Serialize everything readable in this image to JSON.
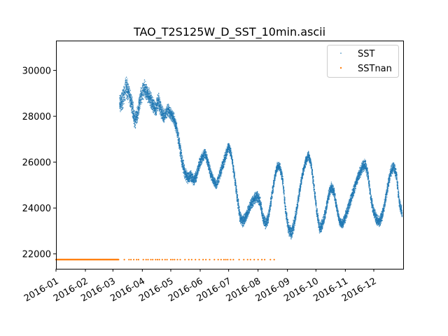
{
  "chart_data": {
    "type": "scatter",
    "title": "TAO_T2S125W_D_SST_10min.ascii",
    "xlabel": "",
    "ylabel": "",
    "x_range": [
      "2016-01-01",
      "2016-12-31"
    ],
    "ylim": [
      21350,
      31300
    ],
    "x_ticks": [
      "2016-01",
      "2016-02",
      "2016-03",
      "2016-04",
      "2016-05",
      "2016-06",
      "2016-07",
      "2016-08",
      "2016-09",
      "2016-10",
      "2016-11",
      "2016-12"
    ],
    "y_ticks": [
      22000,
      24000,
      26000,
      28000,
      30000
    ],
    "grid": false,
    "legend_position": "top-right",
    "series": [
      {
        "name": "SST",
        "color": "#1f77b4",
        "x": [
          "2016-03-08",
          "2016-03-11",
          "2016-03-15",
          "2016-03-18",
          "2016-03-21",
          "2016-03-24",
          "2016-03-27",
          "2016-03-30",
          "2016-04-03",
          "2016-04-06",
          "2016-04-09",
          "2016-04-12",
          "2016-04-15",
          "2016-04-18",
          "2016-04-21",
          "2016-04-24",
          "2016-04-28",
          "2016-05-01",
          "2016-05-04",
          "2016-05-07",
          "2016-05-10",
          "2016-05-13",
          "2016-05-16",
          "2016-05-19",
          "2016-05-22",
          "2016-05-25",
          "2016-05-28",
          "2016-05-31",
          "2016-06-03",
          "2016-06-06",
          "2016-06-09",
          "2016-06-12",
          "2016-06-15",
          "2016-06-18",
          "2016-06-22",
          "2016-06-25",
          "2016-06-28",
          "2016-07-01",
          "2016-07-04",
          "2016-07-07",
          "2016-07-10",
          "2016-07-13",
          "2016-07-16",
          "2016-07-19",
          "2016-07-22",
          "2016-07-25",
          "2016-07-28",
          "2016-07-31",
          "2016-08-03",
          "2016-08-06",
          "2016-08-09",
          "2016-08-12",
          "2016-08-15",
          "2016-08-18",
          "2016-08-21",
          "2016-08-24",
          "2016-08-27",
          "2016-08-30",
          "2016-09-02",
          "2016-09-05",
          "2016-09-08",
          "2016-09-11",
          "2016-09-14",
          "2016-09-17",
          "2016-09-20",
          "2016-09-23",
          "2016-09-26",
          "2016-09-29",
          "2016-10-02",
          "2016-10-05",
          "2016-10-08",
          "2016-10-11",
          "2016-10-14",
          "2016-10-17",
          "2016-10-20",
          "2016-10-23",
          "2016-10-26",
          "2016-10-29",
          "2016-11-01",
          "2016-11-04",
          "2016-11-07",
          "2016-11-10",
          "2016-11-13",
          "2016-11-16",
          "2016-11-19",
          "2016-11-22",
          "2016-11-25",
          "2016-11-28",
          "2016-12-01",
          "2016-12-04",
          "2016-12-07",
          "2016-12-10",
          "2016-12-13",
          "2016-12-16",
          "2016-12-19",
          "2016-12-22",
          "2016-12-25",
          "2016-12-28",
          "2016-12-31"
        ],
        "y": [
          28500,
          28700,
          29300,
          29000,
          28500,
          27800,
          28100,
          28800,
          29200,
          29000,
          28800,
          28500,
          28300,
          28700,
          28200,
          28000,
          28300,
          28100,
          27900,
          27500,
          26800,
          26000,
          25500,
          25300,
          25400,
          25200,
          25400,
          25900,
          26200,
          26400,
          26000,
          25500,
          25200,
          25000,
          25500,
          25900,
          26300,
          26700,
          26300,
          25400,
          24500,
          23600,
          23400,
          23600,
          23900,
          24200,
          24400,
          24500,
          24300,
          23600,
          23300,
          23600,
          24400,
          25200,
          25800,
          25800,
          25200,
          23900,
          23100,
          22900,
          23300,
          24000,
          24800,
          25500,
          26000,
          26300,
          25900,
          24900,
          23800,
          23100,
          23300,
          23800,
          24500,
          24900,
          24700,
          24000,
          23400,
          23300,
          23600,
          24000,
          24400,
          24800,
          25200,
          25500,
          25800,
          25900,
          25400,
          24400,
          23800,
          23500,
          23400,
          23700,
          24300,
          25000,
          25600,
          25800,
          25400,
          24200,
          23800
        ],
        "spread": [
          500,
          550,
          600,
          550,
          500,
          500,
          450,
          550,
          500,
          450,
          450,
          400,
          400,
          450,
          400,
          350,
          350,
          350,
          350,
          350,
          400,
          400,
          350,
          300,
          300,
          300,
          300,
          300,
          300,
          300,
          300,
          300,
          250,
          250,
          300,
          300,
          300,
          250,
          250,
          300,
          350,
          350,
          300,
          300,
          300,
          300,
          300,
          300,
          300,
          300,
          300,
          300,
          300,
          250,
          250,
          250,
          300,
          300,
          350,
          350,
          350,
          300,
          300,
          250,
          250,
          250,
          250,
          300,
          300,
          300,
          300,
          300,
          300,
          300,
          300,
          250,
          250,
          250,
          300,
          300,
          300,
          300,
          300,
          300,
          300,
          300,
          300,
          300,
          300,
          300,
          300,
          300,
          300,
          300,
          300,
          300,
          300,
          300,
          300
        ]
      },
      {
        "name": "SSTnan",
        "color": "#ff7f0e",
        "y_value": 21750,
        "continuous_segment": [
          "2016-01-01",
          "2016-03-07"
        ],
        "sparse_dates": [
          "2016-03-13",
          "2016-03-18",
          "2016-03-20",
          "2016-03-23",
          "2016-03-26",
          "2016-03-28",
          "2016-04-02",
          "2016-04-05",
          "2016-04-07",
          "2016-04-10",
          "2016-04-12",
          "2016-04-15",
          "2016-04-17",
          "2016-04-19",
          "2016-04-22",
          "2016-04-25",
          "2016-04-27",
          "2016-05-01",
          "2016-05-03",
          "2016-05-05",
          "2016-05-08",
          "2016-05-11",
          "2016-05-16",
          "2016-05-20",
          "2016-05-23",
          "2016-05-27",
          "2016-05-31",
          "2016-06-04",
          "2016-06-07",
          "2016-06-11",
          "2016-06-16",
          "2016-06-20",
          "2016-06-23",
          "2016-06-26",
          "2016-06-28",
          "2016-06-30",
          "2016-07-03",
          "2016-07-06",
          "2016-07-12",
          "2016-07-17",
          "2016-07-21",
          "2016-07-24",
          "2016-07-28",
          "2016-08-01",
          "2016-08-05",
          "2016-08-08",
          "2016-08-14",
          "2016-08-18"
        ]
      }
    ]
  }
}
